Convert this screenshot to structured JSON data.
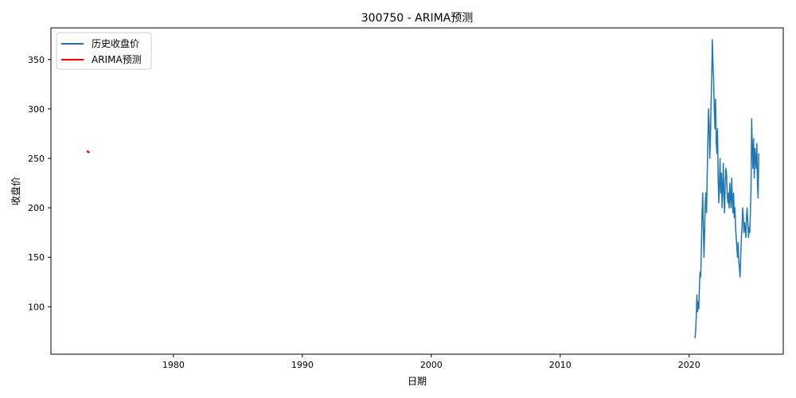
{
  "chart_data": {
    "type": "line",
    "title": "300750 - ARIMA预测",
    "xlabel": "日期",
    "ylabel": "收盘价",
    "xlim": [
      1970.5,
      2027.3
    ],
    "ylim": [
      52,
      382
    ],
    "x_ticks": [
      1980,
      1990,
      2000,
      2010,
      2020
    ],
    "y_ticks": [
      100,
      150,
      200,
      250,
      300,
      350
    ],
    "grid": false,
    "legend_position": "top-left",
    "series": [
      {
        "name": "历史收盘价",
        "color": "#1f77b4",
        "x": [
          2020.45,
          2020.5,
          2020.55,
          2020.6,
          2020.65,
          2020.7,
          2020.75,
          2020.8,
          2020.85,
          2020.9,
          2020.95,
          2021.0,
          2021.05,
          2021.1,
          2021.15,
          2021.2,
          2021.25,
          2021.3,
          2021.35,
          2021.4,
          2021.45,
          2021.5,
          2021.55,
          2021.6,
          2021.65,
          2021.7,
          2021.75,
          2021.8,
          2021.85,
          2021.9,
          2021.95,
          2022.0,
          2022.05,
          2022.1,
          2022.15,
          2022.2,
          2022.25,
          2022.3,
          2022.35,
          2022.4,
          2022.45,
          2022.5,
          2022.55,
          2022.6,
          2022.65,
          2022.7,
          2022.75,
          2022.8,
          2022.85,
          2022.9,
          2022.95,
          2023.0,
          2023.05,
          2023.1,
          2023.15,
          2023.2,
          2023.25,
          2023.3,
          2023.35,
          2023.4,
          2023.45,
          2023.5,
          2023.55,
          2023.6,
          2023.65,
          2023.7,
          2023.75,
          2023.8,
          2023.85,
          2023.9,
          2023.95,
          2024.0,
          2024.05,
          2024.1,
          2024.15,
          2024.2,
          2024.25,
          2024.3,
          2024.35,
          2024.4,
          2024.45,
          2024.5,
          2024.55,
          2024.6,
          2024.65,
          2024.7,
          2024.75,
          2024.8,
          2024.85,
          2024.9,
          2024.95,
          2025.0,
          2025.05,
          2025.1,
          2025.15,
          2025.2,
          2025.25,
          2025.3,
          2025.35,
          2025.4
        ],
        "values": [
          68,
          75,
          90,
          112,
          95,
          105,
          98,
          120,
          135,
          130,
          160,
          195,
          215,
          180,
          150,
          175,
          205,
          215,
          195,
          230,
          265,
          300,
          285,
          250,
          270,
          305,
          330,
          370,
          345,
          330,
          300,
          280,
          310,
          265,
          255,
          280,
          230,
          205,
          225,
          250,
          215,
          235,
          200,
          220,
          245,
          210,
          195,
          225,
          240,
          235,
          215,
          205,
          215,
          200,
          225,
          210,
          200,
          230,
          210,
          195,
          215,
          190,
          200,
          180,
          170,
          160,
          150,
          165,
          145,
          140,
          130,
          150,
          170,
          180,
          200,
          190,
          175,
          185,
          180,
          170,
          190,
          200,
          185,
          170,
          180,
          175,
          195,
          220,
          290,
          260,
          240,
          270,
          230,
          260,
          250,
          240,
          265,
          225,
          210,
          255
        ]
      },
      {
        "name": "ARIMA预测",
        "color": "#ff0000",
        "x": [
          1973.3,
          1973.4,
          1973.5
        ],
        "values": [
          258,
          256,
          257
        ]
      }
    ]
  }
}
